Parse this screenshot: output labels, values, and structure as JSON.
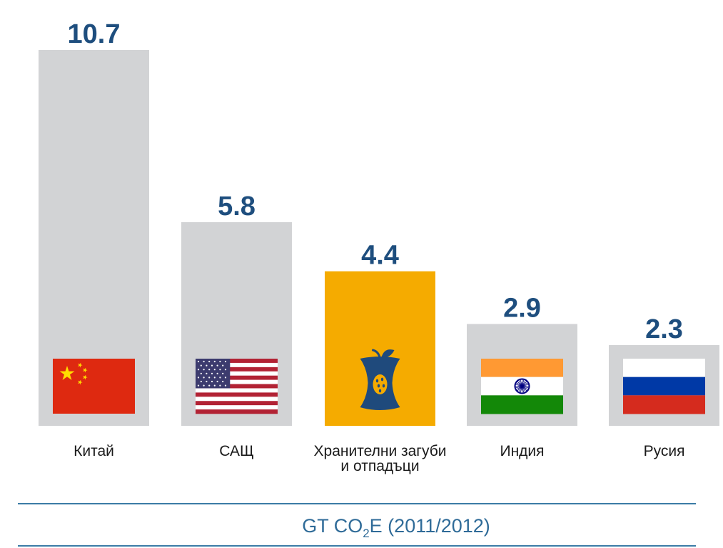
{
  "chart_data": {
    "type": "bar",
    "categories": [
      "Китай",
      "САЩ",
      "Хранителни загуби и отпадъци",
      "Индия",
      "Русия"
    ],
    "category_lines": [
      [
        "Китай"
      ],
      [
        "САЩ"
      ],
      [
        "Хранителни загуби",
        "и отпадъци"
      ],
      [
        "Индия"
      ],
      [
        "Русия"
      ]
    ],
    "values": [
      10.7,
      5.8,
      4.4,
      2.9,
      2.3
    ],
    "value_labels": [
      "10.7",
      "5.8",
      "4.4",
      "2.9",
      "2.3"
    ],
    "ylim": [
      0,
      10.7
    ],
    "icons": [
      "china-flag-icon",
      "usa-flag-icon",
      "eaten-apple-icon",
      "india-flag-icon",
      "russia-flag-icon"
    ],
    "xlabel": "",
    "ylabel": "",
    "unit_label": {
      "prefix": "GT CO",
      "subscript": "2",
      "suffix": "E (2011/2012)"
    },
    "grid": false,
    "legend": "none"
  },
  "colors": {
    "bar_default": "#d2d3d5",
    "bar_highlight": "#f5ab00",
    "value_text": "#1e4e7e",
    "rule_line": "#3c7ca6",
    "unit_text": "#2f6b98",
    "category_text": "#1a1a1a",
    "china_red": "#de2910",
    "china_star": "#ffde00",
    "usa_red": "#b22234",
    "usa_blue": "#3c3b6e",
    "india_saffron": "#ff9933",
    "india_green": "#138808",
    "india_chakra": "#000080",
    "russia_blue": "#0039a6",
    "russia_red": "#d52b1e",
    "apple_blue": "#1f4a7c"
  }
}
